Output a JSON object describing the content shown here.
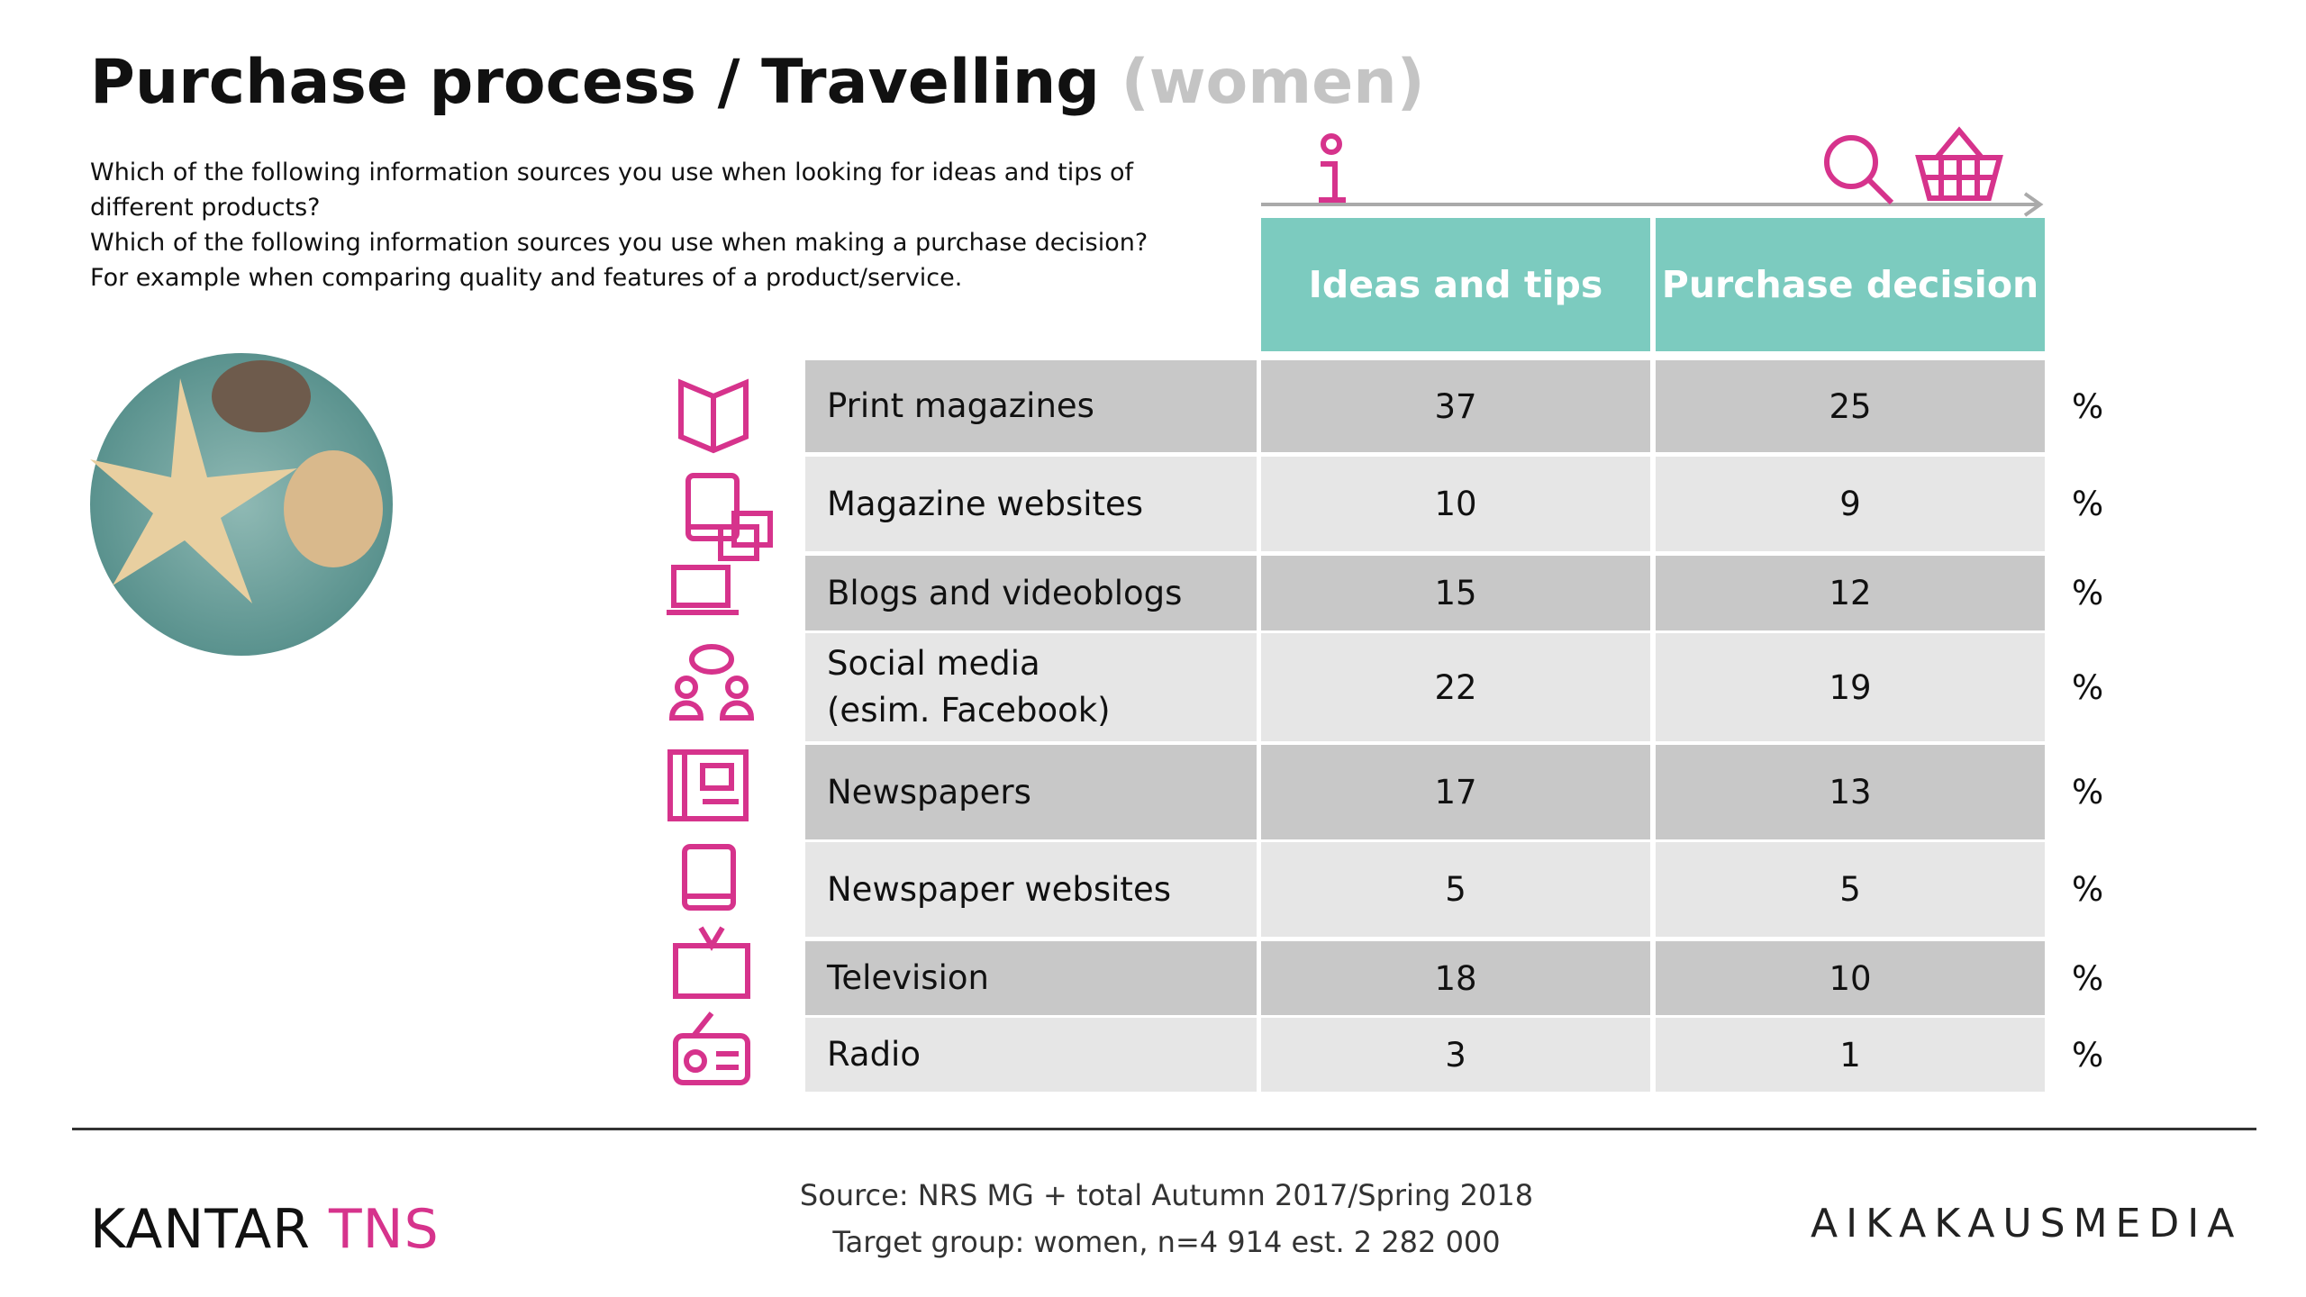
{
  "header": {
    "title": "Purchase process / Travelling",
    "title_suffix": "(women)",
    "questions": [
      "Which of the following information sources you use when looking for ideas and tips of different products?",
      "Which of the following information sources you use when making a purchase decision?",
      "For example when comparing quality and features of a product/service."
    ]
  },
  "table": {
    "columns": [
      "Ideas and tips",
      "Purchase decision"
    ],
    "rows": [
      {
        "label": "Print magazines",
        "ideas": 37,
        "purchase": 25,
        "unit": "%"
      },
      {
        "label": "Magazine websites",
        "ideas": 10,
        "purchase": 9,
        "unit": "%"
      },
      {
        "label": "Blogs and videoblogs",
        "ideas": 15,
        "purchase": 12,
        "unit": "%"
      },
      {
        "label": "Social media\n(esim. Facebook)",
        "ideas": 22,
        "purchase": 19,
        "unit": "%"
      },
      {
        "label": "Newspapers",
        "ideas": 17,
        "purchase": 13,
        "unit": "%"
      },
      {
        "label": "Newspaper websites",
        "ideas": 5,
        "purchase": 5,
        "unit": "%"
      },
      {
        "label": "Television",
        "ideas": 18,
        "purchase": 10,
        "unit": "%"
      },
      {
        "label": "Radio",
        "ideas": 3,
        "purchase": 1,
        "unit": "%"
      }
    ]
  },
  "footer": {
    "source": "Source: NRS MG + total Autumn 2017/Spring 2018",
    "target_group": "Target group: women, n=4 914 est. 2 282 000",
    "logo_kantar": "KANTAR",
    "logo_tns": "TNS",
    "logo_right": "AIKAKAUSMEDIA"
  }
}
